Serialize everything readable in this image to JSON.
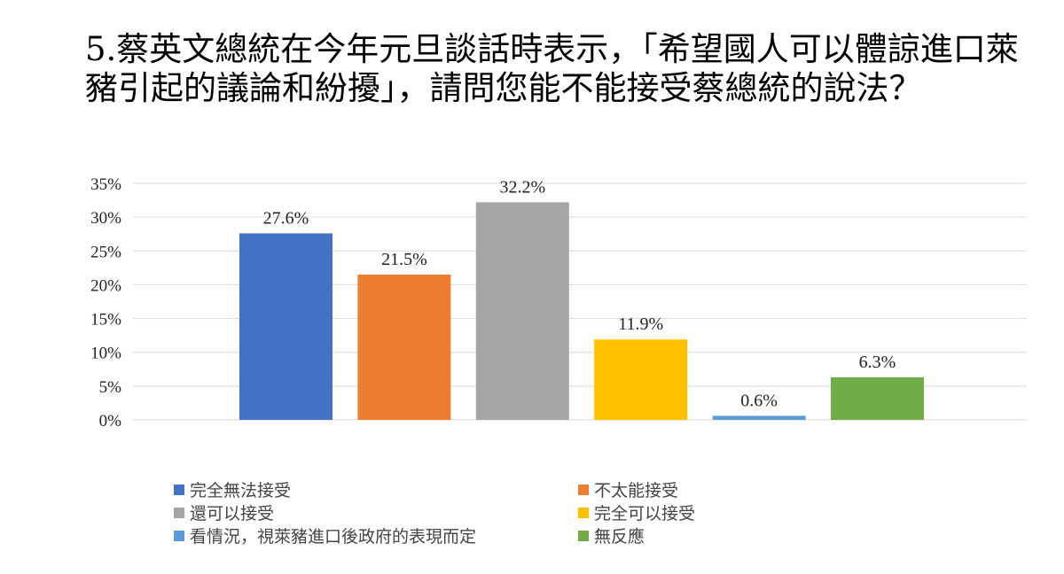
{
  "chart_data": {
    "type": "bar",
    "title": "5.蔡英文總統在今年元旦談話時表示，「希望國人可以體諒進口萊豬引起的議論和紛擾」，請問您能不能接受蔡總統的說法？",
    "categories": [
      "完全無法接受",
      "不太能接受",
      "還可以接受",
      "完全可以接受",
      "看情況，視萊豬進口後政府的表現而定",
      "無反應"
    ],
    "values": [
      27.6,
      21.5,
      32.2,
      11.9,
      0.6,
      6.3
    ],
    "value_labels": [
      "27.6%",
      "21.5%",
      "32.2%",
      "11.9%",
      "0.6%",
      "6.3%"
    ],
    "colors": [
      "#4472C4",
      "#ED7D31",
      "#A5A5A5",
      "#FFC000",
      "#5B9BD5",
      "#70AD47"
    ],
    "yticks": [
      0,
      5,
      10,
      15,
      20,
      25,
      30,
      35
    ],
    "ytick_labels": [
      "0%",
      "5%",
      "10%",
      "15%",
      "20%",
      "25%",
      "30%",
      "35%"
    ],
    "ylim": [
      0,
      35
    ],
    "xlabel": "",
    "ylabel": "",
    "grid": true,
    "legend_position": "bottom"
  }
}
